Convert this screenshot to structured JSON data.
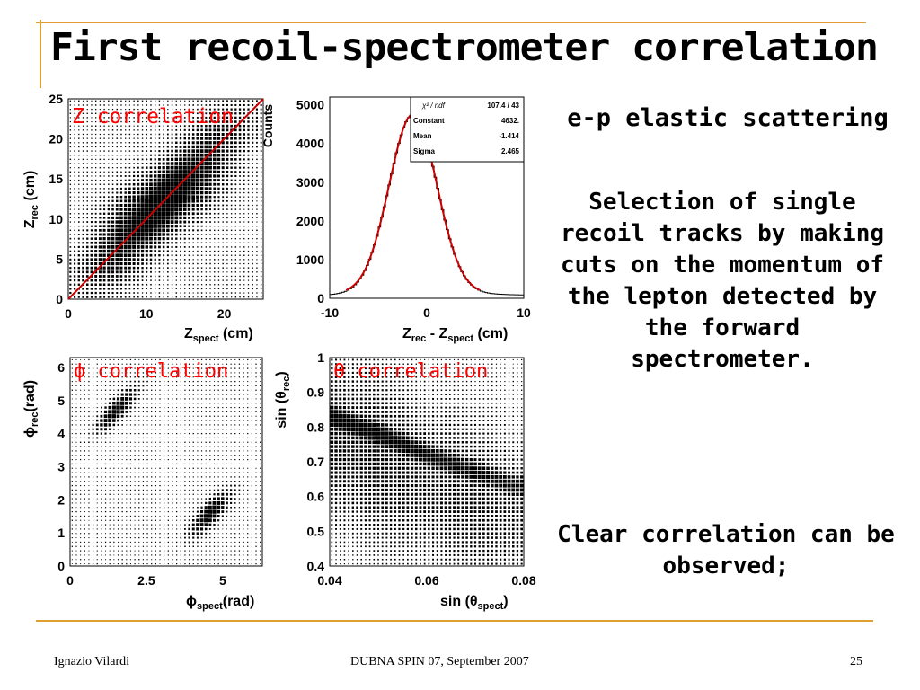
{
  "slide": {
    "title": "First recoil-spectrometer correlation",
    "side_heading": "e-p elastic scattering",
    "side_paragraph_1": "Selection of single recoil tracks by making cuts on the momentum of the lepton detected by the forward spectrometer.",
    "side_paragraph_2": "Clear correlation can be observed;",
    "footer_author": "Ignazio Vilardi",
    "footer_event": "DUBNA SPIN 07, September 2007",
    "footer_page": "25",
    "accent_color": "#e0a030",
    "label_color": "#ff0000"
  },
  "chart_data": [
    {
      "id": "z-corr",
      "type": "scatter",
      "annotation": "Z correlation",
      "xlabel_parts": [
        "Z",
        "spect",
        " (cm)"
      ],
      "ylabel_parts": [
        "Z",
        "rec",
        " (cm)"
      ],
      "xlim": [
        0,
        25
      ],
      "ylim": [
        0,
        25
      ],
      "xticks": [
        0,
        10,
        20
      ],
      "yticks": [
        0,
        5,
        10,
        15,
        20,
        25
      ],
      "diagonal_line": {
        "from": [
          0,
          0
        ],
        "to": [
          25,
          25
        ],
        "color": "#cc0000"
      },
      "density_model": {
        "kind": "diagonal-band",
        "center": [
          12,
          12
        ],
        "spread_along": 8.0,
        "spread_across": 2.4
      }
    },
    {
      "id": "z-diff",
      "type": "histogram",
      "ylabel": "Counts",
      "xlabel_parts": [
        "Z",
        "rec",
        " - Z",
        "spect",
        " (cm)"
      ],
      "xlim": [
        -10,
        10
      ],
      "ylim": [
        0,
        5200
      ],
      "xticks": [
        -10,
        0,
        10
      ],
      "yticks": [
        0,
        1000,
        2000,
        3000,
        4000,
        5000
      ],
      "fit": {
        "function": "gaussian",
        "color": "#cc0000",
        "constant": 4632,
        "mean": -1.414,
        "sigma": 2.465,
        "baseline": 120
      },
      "stats_box": {
        "rows": [
          {
            "label": "χ² / ndf",
            "value": "107.4  /  43"
          },
          {
            "label": "Constant",
            "value": "4632."
          },
          {
            "label": "Mean",
            "value": "-1.414"
          },
          {
            "label": "Sigma",
            "value": "2.465"
          }
        ]
      }
    },
    {
      "id": "phi-corr",
      "type": "scatter",
      "annotation": "ϕ correlation",
      "xlabel_parts": [
        "ϕ",
        "spect",
        "(rad)"
      ],
      "ylabel_parts": [
        "ϕ",
        "rec",
        "(rad)"
      ],
      "xlim": [
        0,
        6.3
      ],
      "ylim": [
        0,
        6.3
      ],
      "xticks": [
        0,
        2.5,
        5
      ],
      "xtick_labels": [
        "0",
        "2.5",
        "5"
      ],
      "yticks": [
        0,
        1,
        2,
        3,
        4,
        5,
        6
      ],
      "density_model": {
        "kind": "two-clusters",
        "clusters": [
          [
            1.5,
            4.7
          ],
          [
            4.6,
            1.6
          ]
        ]
      }
    },
    {
      "id": "theta-corr",
      "type": "scatter",
      "annotation": "θ correlation",
      "xlabel_parts": [
        "sin (θ",
        "spect",
        ")"
      ],
      "ylabel_parts": [
        "sin (θ",
        "rec",
        ")"
      ],
      "xlim": [
        0.04,
        0.08
      ],
      "ylim": [
        0.4,
        1.0
      ],
      "xticks": [
        0.04,
        0.06,
        0.08
      ],
      "xtick_labels": [
        "0.04",
        "0.06",
        "0.08"
      ],
      "yticks": [
        0.4,
        0.5,
        0.6,
        0.7,
        0.8,
        0.9,
        1.0
      ],
      "ytick_labels": [
        "0.4",
        "0.5",
        "0.6",
        "0.7",
        "0.8",
        "0.9",
        "1"
      ],
      "density_model": {
        "kind": "falling-band",
        "points": [
          [
            0.042,
            0.82
          ],
          [
            0.05,
            0.78
          ],
          [
            0.06,
            0.72
          ],
          [
            0.07,
            0.67
          ],
          [
            0.078,
            0.63
          ]
        ]
      }
    }
  ]
}
